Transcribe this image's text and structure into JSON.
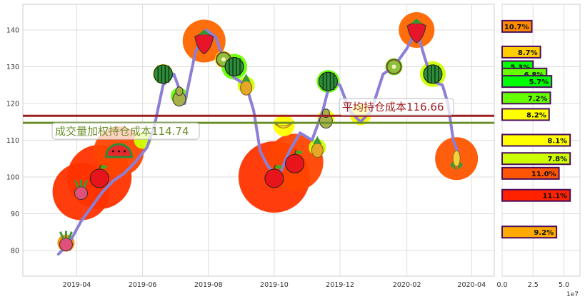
{
  "chart_data": [
    {
      "type": "line",
      "title": "",
      "xlabel": "",
      "ylabel": "",
      "x_ticks": [
        "2019-04",
        "2019-06",
        "2019-08",
        "2019-10",
        "2019-12",
        "2020-02",
        "2020-04"
      ],
      "x_tick_dates": [
        "2019-04-01",
        "2019-06-01",
        "2019-08-01",
        "2019-10-01",
        "2019-12-01",
        "2020-02-01",
        "2020-04-01"
      ],
      "xlim": [
        "2019-02-10",
        "2020-04-22"
      ],
      "ylim": [
        73,
        147
      ],
      "y_ticks": [
        80,
        90,
        100,
        110,
        120,
        130,
        140
      ],
      "grid": true,
      "series": [
        {
          "color": "#8b7fd6",
          "points": [
            [
              "2019-03-15",
              79
            ],
            [
              "2019-03-25",
              82
            ],
            [
              "2019-04-05",
              88
            ],
            [
              "2019-04-15",
              92
            ],
            [
              "2019-04-25",
              96
            ],
            [
              "2019-05-05",
              99
            ],
            [
              "2019-05-15",
              101
            ],
            [
              "2019-05-25",
              104
            ],
            [
              "2019-06-05",
              108
            ],
            [
              "2019-06-12",
              114
            ],
            [
              "2019-06-20",
              125
            ],
            [
              "2019-06-30",
              128
            ],
            [
              "2019-07-10",
              120
            ],
            [
              "2019-07-20",
              134
            ],
            [
              "2019-07-30",
              140
            ],
            [
              "2019-08-08",
              138
            ],
            [
              "2019-08-15",
              132
            ],
            [
              "2019-08-25",
              127
            ],
            [
              "2019-09-05",
              125
            ],
            [
              "2019-09-12",
              118
            ],
            [
              "2019-09-18",
              107
            ],
            [
              "2019-09-25",
              103
            ],
            [
              "2019-10-05",
              100
            ],
            [
              "2019-10-15",
              107
            ],
            [
              "2019-10-25",
              112
            ],
            [
              "2019-11-05",
              110
            ],
            [
              "2019-11-15",
              118
            ],
            [
              "2019-11-22",
              126
            ],
            [
              "2019-12-01",
              125
            ],
            [
              "2019-12-10",
              118
            ],
            [
              "2019-12-20",
              115
            ],
            [
              "2019-12-30",
              118
            ],
            [
              "2020-01-10",
              128
            ],
            [
              "2020-01-20",
              130
            ],
            [
              "2020-02-01",
              135
            ],
            [
              "2020-02-10",
              140
            ],
            [
              "2020-02-18",
              132
            ],
            [
              "2020-02-25",
              126
            ],
            [
              "2020-03-05",
              125
            ],
            [
              "2020-03-10",
              120
            ],
            [
              "2020-03-15",
              110
            ],
            [
              "2020-03-20",
              106
            ]
          ]
        }
      ],
      "bubbles": [
        {
          "date": "2019-03-22",
          "y": 82,
          "r": 12,
          "color": "#ff8c00",
          "icon": "radish-icon"
        },
        {
          "date": "2019-04-05",
          "y": 96,
          "r": 40,
          "color": "#ff3300",
          "icon": "radish-icon"
        },
        {
          "date": "2019-04-22",
          "y": 100,
          "r": 45,
          "color": "#ff3300",
          "icon": "apple-icon"
        },
        {
          "date": "2019-05-10",
          "y": 107,
          "r": 35,
          "color": "#ff4400",
          "icon": "watermelon-slice-icon"
        },
        {
          "date": "2019-06-01",
          "y": 110,
          "r": 12,
          "color": "#ccff00",
          "icon": "none"
        },
        {
          "date": "2019-06-20",
          "y": 128,
          "r": 14,
          "color": "#ffff00",
          "icon": "watermelon-icon"
        },
        {
          "date": "2019-07-05",
          "y": 122,
          "r": 12,
          "color": "#66ff00",
          "icon": "pear-icon"
        },
        {
          "date": "2019-07-28",
          "y": 137,
          "r": 30,
          "color": "#ff6600",
          "icon": "strawberry-icon"
        },
        {
          "date": "2019-08-15",
          "y": 132,
          "r": 12,
          "color": "#ffff00",
          "icon": "kiwi-icon"
        },
        {
          "date": "2019-08-25",
          "y": 130,
          "r": 18,
          "color": "#66ff00",
          "icon": "watermelon-icon"
        },
        {
          "date": "2019-09-05",
          "y": 125,
          "r": 12,
          "color": "#ccff00",
          "icon": "pineapple-icon"
        },
        {
          "date": "2019-10-01",
          "y": 100,
          "r": 50,
          "color": "#ff3300",
          "icon": "apple-icon"
        },
        {
          "date": "2019-10-20",
          "y": 104,
          "r": 40,
          "color": "#ff4400",
          "icon": "apple-icon"
        },
        {
          "date": "2019-10-10",
          "y": 114,
          "r": 15,
          "color": "#ffff00",
          "icon": "banana-icon"
        },
        {
          "date": "2019-11-10",
          "y": 108,
          "r": 12,
          "color": "#ccff00",
          "icon": "pineapple-icon"
        },
        {
          "date": "2019-11-20",
          "y": 126,
          "r": 16,
          "color": "#66ff00",
          "icon": "watermelon-icon"
        },
        {
          "date": "2019-11-18",
          "y": 116,
          "r": 12,
          "color": "#ffff00",
          "icon": "pear-icon"
        },
        {
          "date": "2019-12-20",
          "y": 117,
          "r": 15,
          "color": "#ffff00",
          "icon": "none"
        },
        {
          "date": "2020-01-20",
          "y": 130,
          "r": 12,
          "color": "#66ff00",
          "icon": "kiwi-icon"
        },
        {
          "date": "2020-02-10",
          "y": 140,
          "r": 25,
          "color": "#ff6600",
          "icon": "strawberry-icon"
        },
        {
          "date": "2020-02-25",
          "y": 128,
          "r": 18,
          "color": "#ccff00",
          "icon": "watermelon-icon"
        },
        {
          "date": "2020-03-18",
          "y": 105,
          "r": 30,
          "color": "#ff5500",
          "icon": "corn-icon"
        }
      ],
      "hlines": [
        {
          "y": 116.66,
          "color": "#9e1f1f",
          "label": "平均持仓成本116.66"
        },
        {
          "y": 114.74,
          "color": "#6b8f2a",
          "label": "成交量加权持仓成本114.74"
        }
      ]
    },
    {
      "type": "bar",
      "orientation": "horizontal",
      "xlim": [
        0,
        6.3
      ],
      "x_ticks": [
        "0.0",
        "2.5",
        "5.0"
      ],
      "x_tick_values": [
        0,
        2.5,
        5
      ],
      "x_offset_label": "1e7",
      "ylim": [
        73,
        147
      ],
      "bars": [
        {
          "y": 141,
          "value": 2.4,
          "label": "10.7%",
          "color": "#ff8c00"
        },
        {
          "y": 134,
          "value": 3.1,
          "label": "8.7%",
          "color": "#ffcc00"
        },
        {
          "y": 130,
          "value": 2.5,
          "label": "5.3%",
          "color": "#00ff00"
        },
        {
          "y": 128,
          "value": 3.6,
          "label": "6.8%",
          "color": "#66ff00"
        },
        {
          "y": 126,
          "value": 4.0,
          "label": "5.7%",
          "color": "#00ff00"
        },
        {
          "y": 121.5,
          "value": 3.9,
          "label": "7.2%",
          "color": "#66ff00"
        },
        {
          "y": 117,
          "value": 3.8,
          "label": "8.2%",
          "color": "#ffff00"
        },
        {
          "y": 110,
          "value": 5.5,
          "label": "8.1%",
          "color": "#ffff00"
        },
        {
          "y": 105,
          "value": 5.5,
          "label": "7.8%",
          "color": "#ccff00"
        },
        {
          "y": 101,
          "value": 4.6,
          "label": "11.0%",
          "color": "#ff5500"
        },
        {
          "y": 95,
          "value": 5.5,
          "label": "11.1%",
          "color": "#ff2200"
        },
        {
          "y": 85,
          "value": 4.4,
          "label": "9.2%",
          "color": "#ffaa00"
        }
      ]
    }
  ]
}
